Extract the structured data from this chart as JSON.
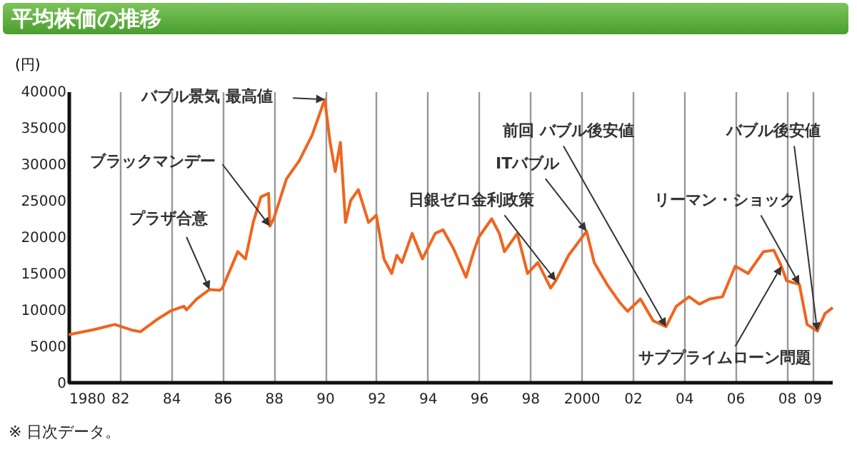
{
  "chart_data": {
    "type": "line",
    "title": "平均株価の推移",
    "ylabel": "(円)",
    "x": [
      1980.0,
      1981.0,
      1981.8,
      1982.5,
      1982.8,
      1983.5,
      1984.0,
      1984.5,
      1984.6,
      1985.0,
      1985.5,
      1985.9,
      1986.0,
      1986.3,
      1986.6,
      1986.9,
      1987.2,
      1987.5,
      1987.8,
      1987.85,
      1988.0,
      1988.5,
      1989.0,
      1989.5,
      1989.99,
      1990.2,
      1990.4,
      1990.6,
      1990.8,
      1991.0,
      1991.3,
      1991.7,
      1992.0,
      1992.3,
      1992.6,
      1992.8,
      1993.0,
      1993.4,
      1993.8,
      1994.3,
      1994.6,
      1995.0,
      1995.5,
      1995.8,
      1996.0,
      1996.5,
      1996.8,
      1997.0,
      1997.5,
      1997.9,
      1998.3,
      1998.8,
      1999.0,
      1999.5,
      2000.2,
      2000.5,
      2001.0,
      2001.5,
      2001.8,
      2002.3,
      2002.8,
      2003.3,
      2003.7,
      2004.2,
      2004.6,
      2005.0,
      2005.5,
      2006.0,
      2006.5,
      2007.1,
      2007.5,
      2007.8,
      2008.0,
      2008.5,
      2008.8,
      2009.2,
      2009.5,
      2009.8
    ],
    "series": [
      {
        "color": "#f0641e",
        "values": [
          6600,
          7300,
          8000,
          7200,
          7000,
          8800,
          9900,
          10500,
          10000,
          11500,
          12800,
          12700,
          13000,
          15500,
          18000,
          17000,
          22000,
          25500,
          26000,
          21500,
          22500,
          28000,
          30500,
          34000,
          38900,
          33000,
          29000,
          33000,
          22000,
          25000,
          26500,
          22000,
          23000,
          17000,
          15000,
          17500,
          16500,
          20500,
          17000,
          20500,
          21000,
          18500,
          14500,
          18000,
          20000,
          22500,
          20500,
          18000,
          20500,
          15000,
          16500,
          13000,
          14000,
          17500,
          20800,
          16500,
          13500,
          11000,
          9800,
          11500,
          8500,
          7700,
          10500,
          11800,
          10800,
          11500,
          11800,
          16000,
          15000,
          18000,
          18200,
          16000,
          14000,
          13500,
          8000,
          7100,
          9500,
          10300
        ]
      }
    ],
    "xlim": [
      1980,
      2009.8
    ],
    "xticks": [
      1980,
      {
        "value": 1982,
        "label": "82"
      },
      {
        "value": 1984,
        "label": "84"
      },
      {
        "value": 1986,
        "label": "86"
      },
      {
        "value": 1988,
        "label": "88"
      },
      {
        "value": 1990,
        "label": "90"
      },
      {
        "value": 1992,
        "label": "92"
      },
      {
        "value": 1994,
        "label": "94"
      },
      {
        "value": 1996,
        "label": "96"
      },
      {
        "value": 1998,
        "label": "98"
      },
      2000,
      {
        "value": 2002,
        "label": "02"
      },
      {
        "value": 2004,
        "label": "04"
      },
      {
        "value": 2006,
        "label": "06"
      },
      {
        "value": 2008,
        "label": "08"
      },
      {
        "value": 2009,
        "label": "09"
      }
    ],
    "ylim": [
      0,
      40000
    ],
    "yticks": [
      0,
      5000,
      10000,
      15000,
      20000,
      25000,
      30000,
      35000,
      40000
    ],
    "grid": "x",
    "annotations": [
      {
        "text": "プラザ合意",
        "x": 1985.5,
        "y": 12800
      },
      {
        "text": "ブラックマンデー",
        "x": 1987.85,
        "y": 21500
      },
      {
        "text": "バブル景気 最高値",
        "x": 1989.99,
        "y": 38900
      },
      {
        "text": "日銀ゼロ金利政策",
        "x": 1999.0,
        "y": 14000
      },
      {
        "text": "ITバブル",
        "x": 2000.2,
        "y": 20800
      },
      {
        "text": "前回 バブル後安値",
        "x": 2003.3,
        "y": 7700
      },
      {
        "text": "リーマン・ショック",
        "x": 2008.5,
        "y": 13500
      },
      {
        "text": "バブル後安値",
        "x": 2009.2,
        "y": 7100
      },
      {
        "text": "サブプライムローン問題",
        "x": 2007.8,
        "y": 16000
      },
      "※ 日次データ。"
    ]
  }
}
